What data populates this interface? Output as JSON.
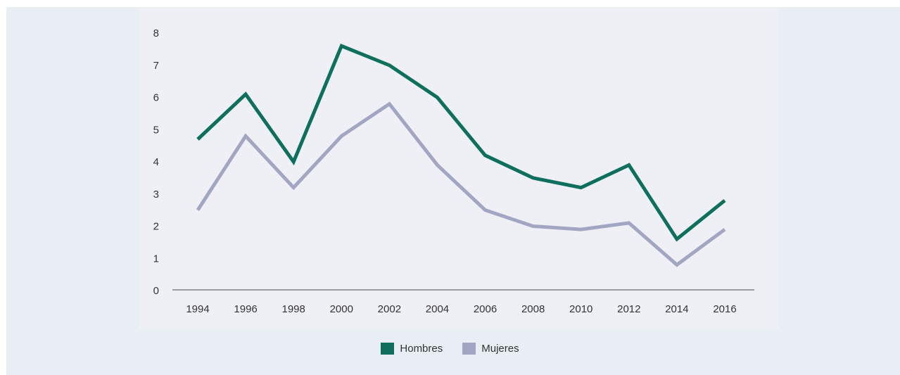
{
  "chart_data": {
    "type": "line",
    "x": [
      1994,
      1996,
      1998,
      2000,
      2002,
      2004,
      2006,
      2008,
      2010,
      2012,
      2014,
      2016
    ],
    "x_tick_labels": [
      "1994",
      "1996",
      "1998",
      "2000",
      "2002",
      "2004",
      "2006",
      "2008",
      "2010",
      "2012",
      "2014",
      "2016"
    ],
    "ylim": [
      0,
      8
    ],
    "y_ticks": [
      "0",
      "1",
      "2",
      "3",
      "4",
      "5",
      "6",
      "7",
      "8"
    ],
    "grid": false,
    "legend_position": "bottom-center",
    "series": [
      {
        "name": "Hombres",
        "color": "#0e6f5c",
        "values": [
          4.7,
          6.1,
          4.0,
          7.6,
          7.0,
          6.0,
          4.2,
          3.5,
          3.2,
          3.9,
          1.6,
          2.8
        ]
      },
      {
        "name": "Mujeres",
        "color": "#a3a6c3",
        "values": [
          2.5,
          4.8,
          3.2,
          4.8,
          5.8,
          3.9,
          2.5,
          2.0,
          1.9,
          2.1,
          0.8,
          1.9
        ]
      }
    ]
  }
}
